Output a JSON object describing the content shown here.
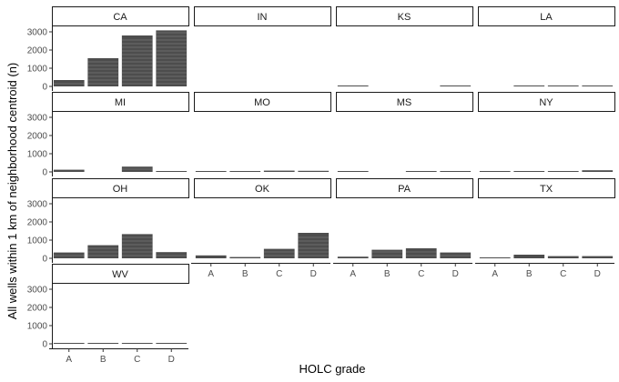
{
  "chart_data": {
    "type": "bar",
    "facet_layout": {
      "ncol": 4
    },
    "categories": [
      "A",
      "B",
      "C",
      "D"
    ],
    "xlabel": "HOLC grade",
    "ylabel": "All wells within 1 km of neighborhood centroid (n)",
    "ylim": [
      0,
      3300
    ],
    "yticks": [
      0,
      1000,
      2000,
      3000
    ],
    "grid": false,
    "bar_color": "#4d4d4d",
    "stripe_color": "#8c8c8c",
    "facets": [
      {
        "name": "CA",
        "values": [
          350,
          1550,
          2800,
          3080
        ]
      },
      {
        "name": "IN",
        "values": [
          0,
          0,
          0,
          0
        ]
      },
      {
        "name": "KS",
        "values": [
          30,
          0,
          0,
          30
        ]
      },
      {
        "name": "LA",
        "values": [
          0,
          10,
          40,
          50
        ]
      },
      {
        "name": "MI",
        "values": [
          120,
          0,
          290,
          20
        ]
      },
      {
        "name": "MO",
        "values": [
          20,
          50,
          70,
          60
        ]
      },
      {
        "name": "MS",
        "values": [
          10,
          0,
          20,
          20
        ]
      },
      {
        "name": "NY",
        "values": [
          40,
          30,
          40,
          90
        ]
      },
      {
        "name": "OH",
        "values": [
          320,
          720,
          1330,
          340
        ]
      },
      {
        "name": "OK",
        "values": [
          160,
          70,
          520,
          1400
        ]
      },
      {
        "name": "PA",
        "values": [
          90,
          470,
          550,
          320
        ]
      },
      {
        "name": "TX",
        "values": [
          50,
          200,
          120,
          120
        ]
      },
      {
        "name": "WV",
        "values": [
          10,
          10,
          20,
          10
        ]
      }
    ]
  }
}
